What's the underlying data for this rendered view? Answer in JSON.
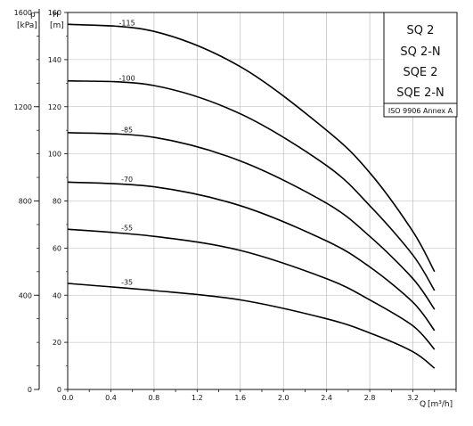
{
  "chart_data": {
    "type": "line",
    "title": "",
    "legend": {
      "lines": [
        "SQ 2",
        "SQ 2-N",
        "SQE 2",
        "SQE 2-N"
      ],
      "note": "ISO 9906 Annex A",
      "placement": "top-right"
    },
    "x_axis": {
      "label_symbol": "Q",
      "label_unit": "[m³/h]",
      "ticks": [
        "0.0",
        "0.4",
        "0.8",
        "1.2",
        "1.6",
        "2.0",
        "2.4",
        "2.8",
        "3.2"
      ],
      "range": [
        0.0,
        3.6
      ]
    },
    "y_axis_left": {
      "label_symbol": "p",
      "label_unit": "[kPa]",
      "ticks": [
        "0",
        "400",
        "800",
        "1200",
        "1600"
      ],
      "range": [
        0,
        1600
      ]
    },
    "y_axis_right": {
      "label_symbol": "H",
      "label_unit": "[m]",
      "ticks": [
        "0",
        "20",
        "40",
        "60",
        "80",
        "100",
        "120",
        "140",
        "160"
      ],
      "range": [
        0,
        160
      ]
    },
    "grid": true,
    "series": [
      {
        "name": "-115",
        "x": [
          0.0,
          0.8,
          1.6,
          2.4,
          2.8,
          3.2,
          3.4
        ],
        "y": [
          155,
          152,
          137,
          110,
          92,
          67,
          50
        ]
      },
      {
        "name": "-100",
        "x": [
          0.0,
          0.8,
          1.6,
          2.4,
          2.8,
          3.2,
          3.4
        ],
        "y": [
          131,
          129,
          117,
          95,
          78,
          57,
          42
        ]
      },
      {
        "name": "-85",
        "x": [
          0.0,
          0.8,
          1.6,
          2.4,
          2.8,
          3.2,
          3.4
        ],
        "y": [
          109,
          107,
          97,
          79,
          65,
          47,
          34
        ]
      },
      {
        "name": "-70",
        "x": [
          0.0,
          0.8,
          1.6,
          2.4,
          2.8,
          3.2,
          3.4
        ],
        "y": [
          88,
          86,
          78,
          63,
          52,
          37,
          25
        ]
      },
      {
        "name": "-55",
        "x": [
          0.0,
          0.8,
          1.6,
          2.4,
          2.8,
          3.2,
          3.4
        ],
        "y": [
          68,
          65,
          59,
          47,
          38,
          27,
          17
        ]
      },
      {
        "name": "-35",
        "x": [
          0.0,
          0.8,
          1.6,
          2.4,
          2.8,
          3.2,
          3.4
        ],
        "y": [
          45,
          42,
          38,
          30,
          24,
          16,
          9
        ]
      }
    ]
  }
}
